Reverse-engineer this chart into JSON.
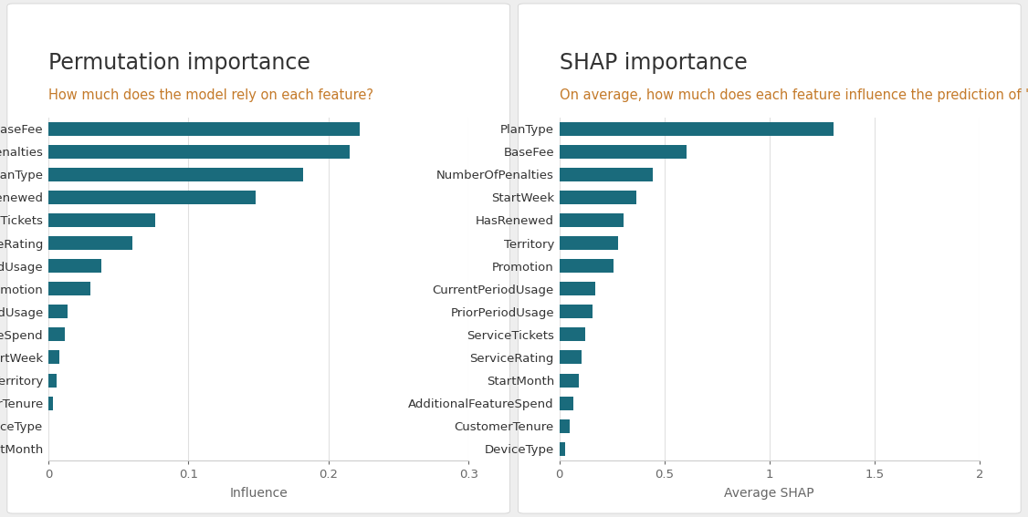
{
  "perm_title": "Permutation importance",
  "perm_subtitle": "How much does the model rely on each feature?",
  "perm_xlabel": "Influence",
  "perm_features": [
    "StartMonth",
    "DeviceType",
    "CustomerTenure",
    "Territory",
    "StartWeek",
    "AdditionalFeatureSpend",
    "CurrentPeriodUsage",
    "Promotion",
    "PriorPeriodUsage",
    "ServiceRating",
    "ServiceTickets",
    "HasRenewed",
    "PlanType",
    "NumberOfPenalties",
    "BaseFee"
  ],
  "perm_values": [
    0.0,
    0.0,
    0.003,
    0.006,
    0.008,
    0.012,
    0.014,
    0.03,
    0.038,
    0.06,
    0.076,
    0.148,
    0.182,
    0.215,
    0.222
  ],
  "perm_xlim": [
    0,
    0.3
  ],
  "perm_xticks": [
    0,
    0.1,
    0.2,
    0.3
  ],
  "perm_xticklabels": [
    "0",
    "0.1",
    "0.2",
    "0.3"
  ],
  "shap_title": "SHAP importance",
  "shap_subtitle": "On average, how much does each feature influence the prediction of ‘Churned’?",
  "shap_subtitle_raw": "On average, how much does each feature influence the prediction of 'Churned'?",
  "shap_xlabel": "Average SHAP",
  "shap_features": [
    "DeviceType",
    "CustomerTenure",
    "AdditionalFeatureSpend",
    "StartMonth",
    "ServiceRating",
    "ServiceTickets",
    "PriorPeriodUsage",
    "CurrentPeriodUsage",
    "Promotion",
    "Territory",
    "HasRenewed",
    "StartWeek",
    "NumberOfPenalties",
    "BaseFee",
    "PlanType"
  ],
  "shap_values": [
    0.028,
    0.048,
    0.068,
    0.092,
    0.108,
    0.125,
    0.158,
    0.17,
    0.26,
    0.28,
    0.308,
    0.365,
    0.445,
    0.605,
    1.305
  ],
  "shap_xlim": [
    0,
    2
  ],
  "shap_xticks": [
    0,
    0.5,
    1.0,
    1.5,
    2.0
  ],
  "shap_xticklabels": [
    "0",
    "0.5",
    "1",
    "1.5",
    "2"
  ],
  "bar_color": "#1a6b7c",
  "title_color": "#333333",
  "subtitle_color": "#c47a2a",
  "title_fontsize": 17,
  "subtitle_fontsize": 10.5,
  "label_fontsize": 9.5,
  "tick_fontsize": 9.5,
  "xlabel_fontsize": 10,
  "bg_color": "#eeeeee",
  "panel_bg": "#ffffff",
  "grid_color": "#e0e0e0",
  "spine_color": "#cccccc",
  "tick_color": "#666666"
}
